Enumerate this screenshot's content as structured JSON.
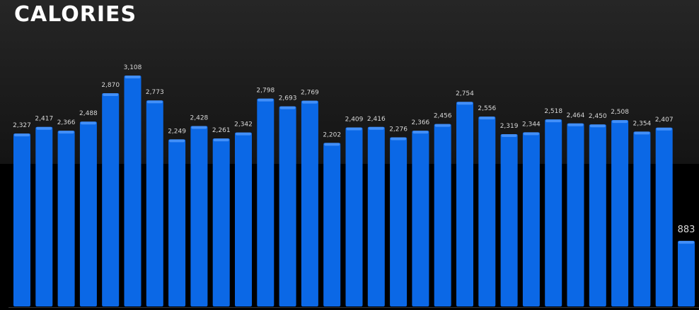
{
  "chart_data": {
    "type": "bar",
    "title": "CALORIES",
    "values": [
      2327,
      2417,
      2366,
      2488,
      2870,
      3108,
      2773,
      2249,
      2428,
      2261,
      2342,
      2798,
      2693,
      2769,
      2202,
      2409,
      2416,
      2276,
      2366,
      2456,
      2754,
      2556,
      2319,
      2344,
      2518,
      2464,
      2450,
      2508,
      2354,
      2407,
      883
    ],
    "value_labels": [
      "2,327",
      "2,417",
      "2,366",
      "2,488",
      "2,870",
      "3,108",
      "2,773",
      "2,249",
      "2,428",
      "2,261",
      "2,342",
      "2,798",
      "2,693",
      "2,769",
      "2,202",
      "2,409",
      "2,416",
      "2,276",
      "2,366",
      "2,456",
      "2,754",
      "2,556",
      "2,319",
      "2,344",
      "2,518",
      "2,464",
      "2,450",
      "2,508",
      "2,354",
      "2,407",
      "883"
    ],
    "color": "#0b68e6"
  }
}
